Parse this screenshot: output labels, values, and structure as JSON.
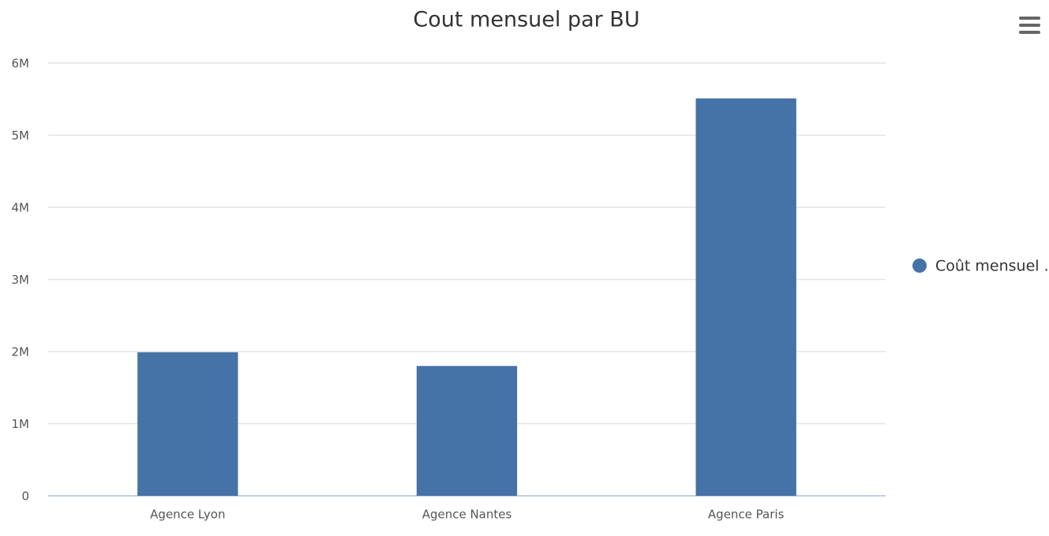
{
  "chart_data": {
    "type": "bar",
    "title": "Cout mensuel par BU",
    "categories": [
      "Agence Lyon",
      "Agence Nantes",
      "Agence Paris"
    ],
    "series": [
      {
        "name": "Coût mensuel ..",
        "color": "#4572a7",
        "values": [
          1990000,
          1800000,
          5510000
        ]
      }
    ],
    "ylim": [
      0,
      6000000
    ],
    "yticks": [
      0,
      {
        "value": 1000000,
        "label": "1M"
      },
      {
        "value": 2000000,
        "label": "2M"
      },
      {
        "value": 3000000,
        "label": "3M"
      },
      {
        "value": 4000000,
        "label": "4M"
      },
      {
        "value": 5000000,
        "label": "5M"
      },
      {
        "value": 6000000,
        "label": "6M"
      }
    ],
    "grid": true,
    "legend": "right"
  }
}
